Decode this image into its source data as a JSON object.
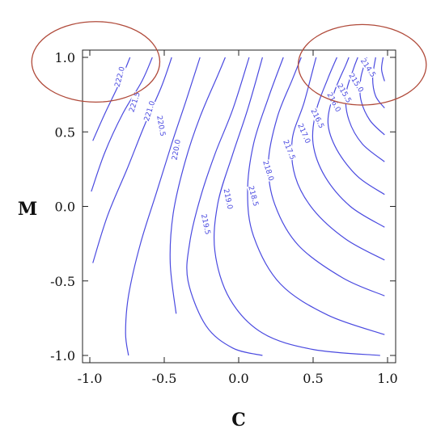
{
  "chart_data": {
    "type": "contour",
    "title": "",
    "xlabel": "C",
    "ylabel": "M",
    "xlim": [
      -1.0,
      1.0
    ],
    "ylim": [
      -1.0,
      1.0
    ],
    "x_ticks": [
      "-1.0",
      "-0.5",
      "0.0",
      "0.5",
      "1.0"
    ],
    "y_ticks": [
      "1.0",
      "0.5",
      "0.0",
      "-0.5",
      "-1.0"
    ],
    "grid": false,
    "line_color": "#4a4ae0",
    "highlight_color": "#b04a3a",
    "levels": [
      {
        "label": "222.0",
        "points": [
          [
            -0.98,
            0.44
          ],
          [
            -0.9,
            0.62
          ],
          [
            -0.8,
            0.83
          ],
          [
            -0.73,
            1.0
          ]
        ],
        "label_at": [
          -0.8,
          0.87
        ],
        "label_angle": -75
      },
      {
        "label": "221.5",
        "points": [
          [
            -0.99,
            0.1
          ],
          [
            -0.9,
            0.36
          ],
          [
            -0.78,
            0.62
          ],
          [
            -0.65,
            0.84
          ],
          [
            -0.58,
            1.0
          ]
        ],
        "label_at": [
          -0.7,
          0.7
        ],
        "label_angle": -72
      },
      {
        "label": "221.0",
        "points": [
          [
            -0.98,
            -0.38
          ],
          [
            -0.88,
            -0.06
          ],
          [
            -0.75,
            0.25
          ],
          [
            -0.63,
            0.55
          ],
          [
            -0.52,
            0.8
          ],
          [
            -0.45,
            1.0
          ]
        ],
        "label_at": [
          -0.6,
          0.64
        ],
        "label_angle": -72
      },
      {
        "label": "220.5",
        "points": [
          [
            -0.74,
            -1.0
          ],
          [
            -0.76,
            -0.85
          ],
          [
            -0.74,
            -0.6
          ],
          [
            -0.66,
            -0.25
          ],
          [
            -0.55,
            0.1
          ],
          [
            -0.45,
            0.42
          ],
          [
            -0.35,
            0.72
          ],
          [
            -0.26,
            1.0
          ]
        ],
        "label_at": [
          -0.52,
          0.54
        ],
        "label_angle": 80
      },
      {
        "label": "220.0",
        "points": [
          [
            -0.42,
            -0.72
          ],
          [
            -0.46,
            -0.38
          ],
          [
            -0.44,
            -0.05
          ],
          [
            -0.36,
            0.3
          ],
          [
            -0.26,
            0.6
          ],
          [
            -0.14,
            0.88
          ],
          [
            -0.09,
            1.0
          ]
        ],
        "label_at": [
          -0.42,
          0.38
        ],
        "label_angle": -80
      },
      {
        "label": "219.5",
        "points": [
          [
            0.16,
            -1.0
          ],
          [
            -0.04,
            -0.95
          ],
          [
            -0.22,
            -0.8
          ],
          [
            -0.34,
            -0.5
          ],
          [
            -0.33,
            -0.25
          ],
          [
            -0.26,
            0.05
          ],
          [
            -0.16,
            0.35
          ],
          [
            -0.04,
            0.65
          ],
          [
            0.07,
            1.0
          ]
        ],
        "label_at": [
          -0.22,
          -0.12
        ],
        "label_angle": 78
      },
      {
        "label": "219.0",
        "points": [
          [
            0.95,
            -1.0
          ],
          [
            0.5,
            -0.96
          ],
          [
            0.16,
            -0.85
          ],
          [
            -0.06,
            -0.62
          ],
          [
            -0.16,
            -0.3
          ],
          [
            -0.14,
            0.02
          ],
          [
            -0.04,
            0.35
          ],
          [
            0.06,
            0.65
          ],
          [
            0.16,
            1.0
          ]
        ],
        "label_at": [
          -0.07,
          0.05
        ],
        "label_angle": 78
      },
      {
        "label": "218.5",
        "points": [
          [
            0.98,
            -0.86
          ],
          [
            0.6,
            -0.73
          ],
          [
            0.28,
            -0.52
          ],
          [
            0.1,
            -0.2
          ],
          [
            0.06,
            0.1
          ],
          [
            0.1,
            0.42
          ],
          [
            0.2,
            0.73
          ],
          [
            0.3,
            1.0
          ]
        ],
        "label_at": [
          0.1,
          0.07
        ],
        "label_angle": 75
      },
      {
        "label": "218.0",
        "points": [
          [
            0.98,
            -0.6
          ],
          [
            0.7,
            -0.48
          ],
          [
            0.4,
            -0.26
          ],
          [
            0.24,
            0.02
          ],
          [
            0.2,
            0.3
          ],
          [
            0.26,
            0.6
          ],
          [
            0.36,
            0.85
          ],
          [
            0.42,
            1.0
          ]
        ],
        "label_at": [
          0.2,
          0.24
        ],
        "label_angle": 72
      },
      {
        "label": "217.5",
        "points": [
          [
            0.98,
            -0.36
          ],
          [
            0.72,
            -0.22
          ],
          [
            0.5,
            -0.02
          ],
          [
            0.38,
            0.2
          ],
          [
            0.36,
            0.45
          ],
          [
            0.44,
            0.7
          ],
          [
            0.52,
            1.0
          ]
        ],
        "label_at": [
          0.34,
          0.38
        ],
        "label_angle": 68
      },
      {
        "label": "217.0",
        "points": [
          [
            0.98,
            -0.14
          ],
          [
            0.75,
            0.0
          ],
          [
            0.58,
            0.2
          ],
          [
            0.5,
            0.42
          ],
          [
            0.52,
            0.64
          ],
          [
            0.6,
            0.86
          ],
          [
            0.66,
            1.0
          ]
        ],
        "label_at": [
          0.44,
          0.49
        ],
        "label_angle": 66
      },
      {
        "label": "216.5",
        "points": [
          [
            0.98,
            0.08
          ],
          [
            0.8,
            0.2
          ],
          [
            0.66,
            0.38
          ],
          [
            0.6,
            0.56
          ],
          [
            0.64,
            0.76
          ],
          [
            0.72,
            0.95
          ],
          [
            0.74,
            1.0
          ]
        ],
        "label_at": [
          0.53,
          0.59
        ],
        "label_angle": 64
      },
      {
        "label": "216.0",
        "points": [
          [
            0.98,
            0.3
          ],
          [
            0.83,
            0.42
          ],
          [
            0.74,
            0.58
          ],
          [
            0.72,
            0.75
          ],
          [
            0.77,
            0.92
          ],
          [
            0.8,
            1.0
          ]
        ],
        "label_at": [
          0.64,
          0.7
        ],
        "label_angle": 62
      },
      {
        "label": "215.5",
        "points": [
          [
            0.98,
            0.48
          ],
          [
            0.88,
            0.58
          ],
          [
            0.82,
            0.72
          ],
          [
            0.82,
            0.86
          ],
          [
            0.86,
            1.0
          ]
        ],
        "label_at": [
          0.71,
          0.76
        ],
        "label_angle": 60
      },
      {
        "label": "215.0",
        "points": [
          [
            0.98,
            0.66
          ],
          [
            0.92,
            0.74
          ],
          [
            0.9,
            0.86
          ],
          [
            0.92,
            1.0
          ]
        ],
        "label_at": [
          0.79,
          0.83
        ],
        "label_angle": 58
      },
      {
        "label": "214.5",
        "points": [
          [
            0.98,
            0.84
          ],
          [
            0.96,
            0.92
          ],
          [
            0.97,
            1.0
          ]
        ],
        "label_at": [
          0.87,
          0.93
        ],
        "label_angle": 56
      }
    ],
    "annotations": [
      {
        "type": "ellipse",
        "cx": -0.96,
        "cy": 0.97,
        "rx": 0.43,
        "ry": 0.27
      },
      {
        "type": "ellipse",
        "cx": 0.83,
        "cy": 0.95,
        "rx": 0.43,
        "ry": 0.27
      }
    ]
  }
}
